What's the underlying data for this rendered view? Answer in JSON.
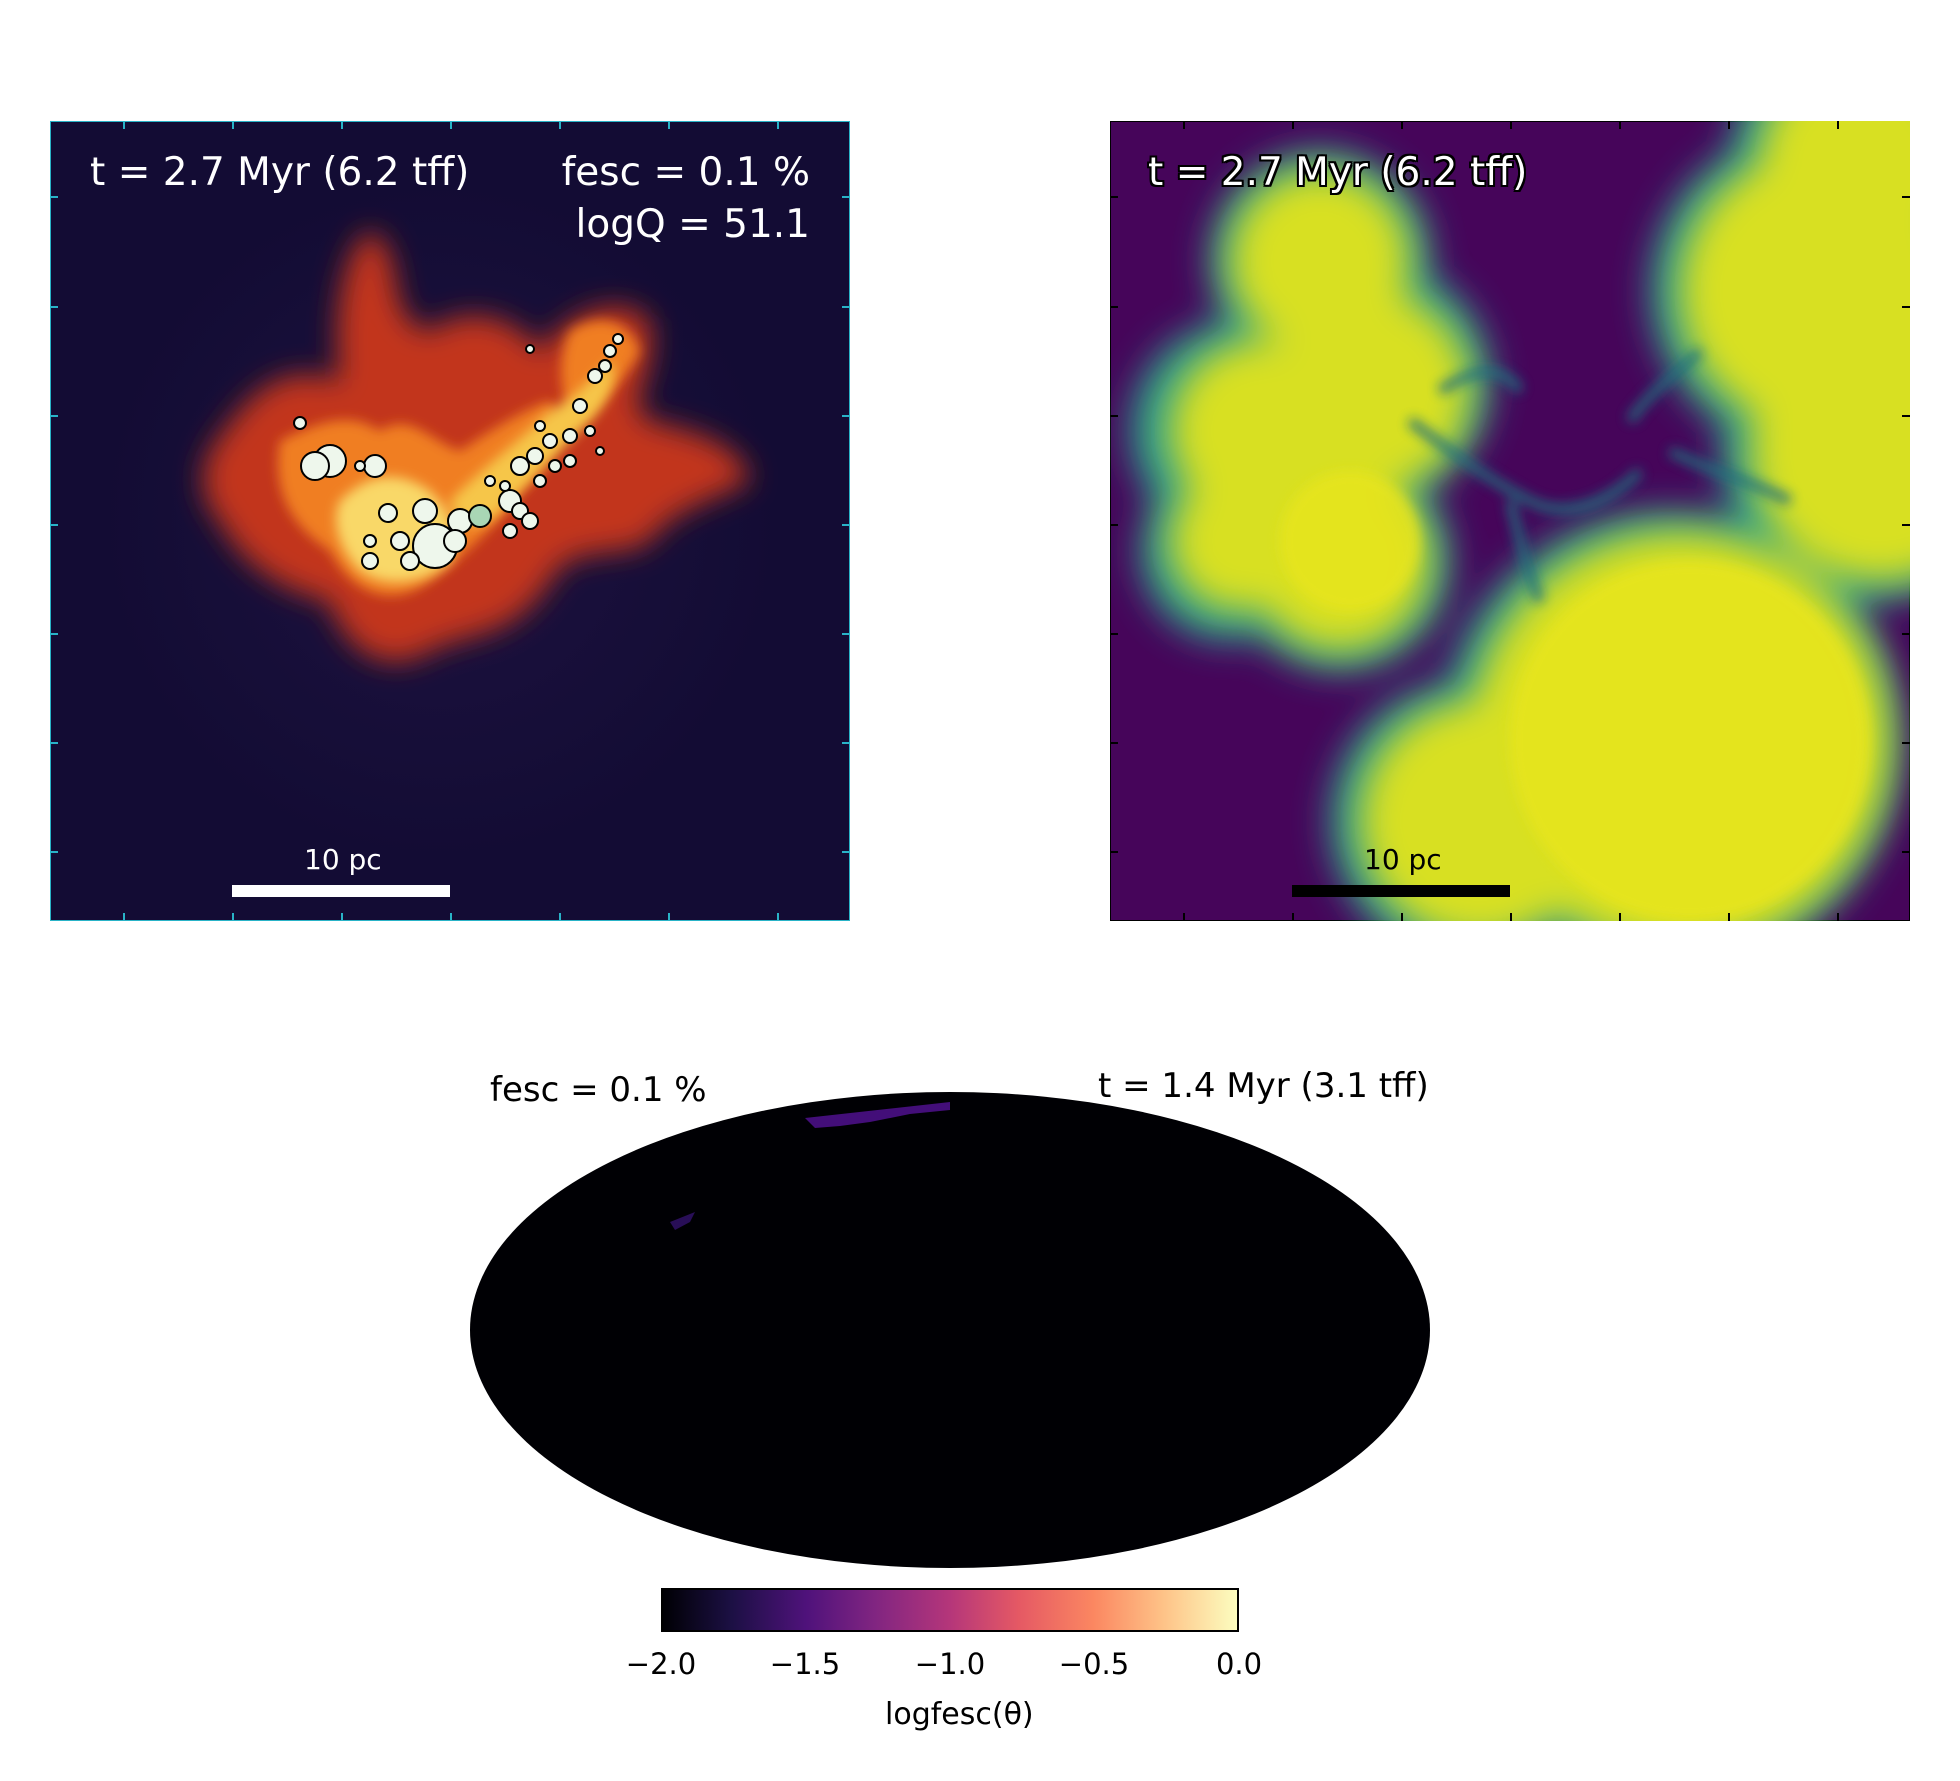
{
  "panel_a": {
    "time_label": "t = 2.7 Myr (6.2 tff)",
    "fesc_label": "fesc = 0.1 %",
    "logq_label": "logQ = 51.1",
    "scalebar_label": "10 pc"
  },
  "panel_b": {
    "time_label": "t = 2.7 Myr (6.2 tff)",
    "scalebar_label": "10 pc"
  },
  "skymap": {
    "fesc_label": "fesc = 0.1 %",
    "time_label": "t = 1.4 Myr (3.1 tff)"
  },
  "colorbar": {
    "ticks": [
      "−2.0",
      "−1.5",
      "−1.0",
      "−0.5",
      "0.0"
    ],
    "label": "logfesc(θ)",
    "range": [
      -2.0,
      0.0
    ]
  },
  "colors": {
    "panel_a_bg": "#130c34",
    "panel_b_bg": "#46055a",
    "gas_yellow": "#e6e41f",
    "gas_teal": "#2ba08c",
    "magma_dark": "#000004",
    "magma_light": "#fcfdbf"
  }
}
